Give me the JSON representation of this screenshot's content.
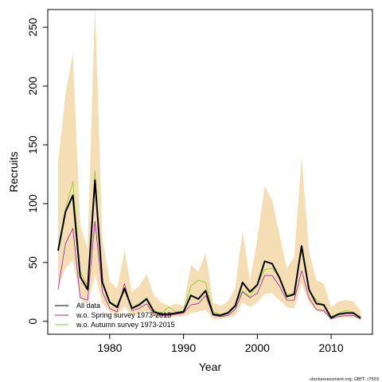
{
  "chart_data": {
    "type": "line",
    "title": "",
    "xlabel": "Year",
    "ylabel": "Recruits",
    "xlim": [
      1971.6,
      2015.6
    ],
    "ylim": [
      -11,
      265
    ],
    "x_ticks": [
      1980,
      1990,
      2000,
      2010
    ],
    "y_ticks": [
      0,
      50,
      100,
      150,
      200,
      250
    ],
    "grid": false,
    "legend_position": "bottom-left",
    "x": [
      1973,
      1974,
      1975,
      1976,
      1977,
      1978,
      1979,
      1980,
      1981,
      1982,
      1983,
      1984,
      1985,
      1986,
      1987,
      1988,
      1989,
      1990,
      1991,
      1992,
      1993,
      1994,
      1995,
      1996,
      1997,
      1998,
      1999,
      2000,
      2001,
      2002,
      2003,
      2004,
      2005,
      2006,
      2007,
      2008,
      2009,
      2010,
      2011,
      2012,
      2013,
      2014
    ],
    "band": {
      "color": "#f5deb3",
      "upper": [
        135,
        193,
        228,
        82,
        62,
        270,
        70,
        34,
        28,
        60,
        25,
        30,
        40,
        22,
        16,
        13,
        15,
        13,
        48,
        42,
        58,
        16,
        13,
        17,
        28,
        77,
        34,
        70,
        115,
        103,
        74,
        45,
        55,
        140,
        60,
        35,
        32,
        12,
        17,
        18,
        17,
        9
      ],
      "lower": [
        30,
        45,
        52,
        20,
        14,
        40,
        15,
        8,
        5,
        13,
        5,
        7,
        9,
        4,
        3,
        3,
        4,
        4,
        7,
        8,
        10,
        2,
        2,
        3,
        5,
        16,
        12,
        16,
        23,
        24,
        18,
        12,
        11,
        32,
        16,
        9,
        7,
        2,
        3,
        3,
        3,
        1
      ]
    },
    "series": [
      {
        "name": "All data",
        "color": "#000000",
        "values": [
          60,
          93,
          107,
          38,
          27,
          120,
          33,
          16,
          12,
          28,
          11,
          14,
          19,
          8,
          6,
          6,
          7,
          8,
          22,
          19,
          26,
          6,
          5,
          7,
          13,
          33,
          25,
          31,
          51,
          49,
          37,
          21,
          23,
          64,
          27,
          15,
          14,
          3,
          6,
          7,
          7,
          3
        ]
      },
      {
        "name": "w.o. Spring survey 1973-2015",
        "color": "#a020a0",
        "values": [
          27,
          66,
          79,
          20,
          18,
          85,
          25,
          11,
          8,
          32,
          9,
          11,
          15,
          6,
          5,
          5,
          6,
          7,
          14,
          15,
          22,
          5,
          4,
          5,
          10,
          25,
          20,
          24,
          39,
          39,
          30,
          18,
          18,
          43,
          20,
          10,
          9,
          2,
          4,
          5,
          5,
          2
        ]
      },
      {
        "name": "w.o. Autumn survey 1973-2015",
        "color": "#80d020",
        "values": [
          62,
          95,
          119,
          42,
          30,
          128,
          35,
          17,
          13,
          26,
          12,
          15,
          20,
          9,
          7,
          12,
          8,
          9,
          30,
          35,
          33,
          8,
          6,
          8,
          14,
          26,
          21,
          31,
          44,
          45,
          37,
          22,
          24,
          60,
          26,
          18,
          13,
          4,
          7,
          9,
          8,
          3
        ]
      }
    ],
    "footnote": "stockassessment.org, GBYT, r7503"
  }
}
